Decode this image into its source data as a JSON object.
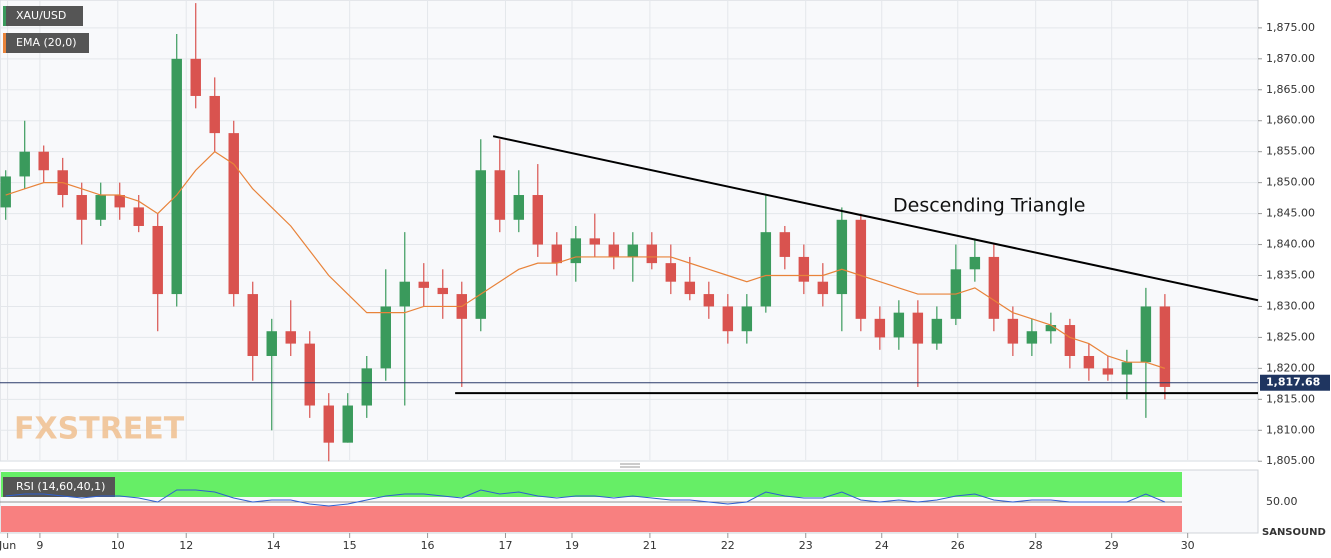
{
  "chart_data": {
    "type": "candlestick",
    "symbol": "XAU/USD",
    "annotation": "Descending Triangle",
    "watermark": "FXSTREET",
    "logo_text": "SANSOUND",
    "up_color": "#3a9a5c",
    "down_color": "#d9534f",
    "x": [
      0,
      1,
      2,
      3,
      4,
      5,
      6,
      7,
      8,
      9,
      10,
      11,
      12,
      13,
      14,
      15,
      16,
      17,
      18,
      19,
      20,
      21,
      22,
      23,
      24,
      25,
      26,
      27,
      28,
      29,
      30,
      31,
      32,
      33,
      34,
      35,
      36,
      37,
      38,
      39,
      40,
      41,
      42,
      43,
      44,
      45,
      46,
      47,
      48,
      49,
      50,
      51,
      52,
      53,
      54,
      55,
      56,
      57,
      58,
      59,
      60,
      61
    ],
    "open": [
      1846,
      1851,
      1855,
      1852,
      1848,
      1844,
      1848,
      1846,
      1843,
      1832,
      1870,
      1864,
      1858,
      1832,
      1822,
      1826,
      1824,
      1814,
      1808,
      1814,
      1820,
      1830,
      1834,
      1833,
      1832,
      1828,
      1852,
      1844,
      1848,
      1840,
      1837,
      1841,
      1840,
      1838,
      1840,
      1837,
      1834,
      1832,
      1830,
      1826,
      1830,
      1842,
      1838,
      1834,
      1832,
      1844,
      1828,
      1825,
      1829,
      1824,
      1828,
      1836,
      1838,
      1828,
      1824,
      1826,
      1827,
      1822,
      1820,
      1819,
      1821,
      1830
    ],
    "high": [
      1852,
      1860,
      1856,
      1854,
      1850,
      1850,
      1850,
      1848,
      1845,
      1874,
      1879,
      1867,
      1860,
      1834,
      1828,
      1831,
      1826,
      1816,
      1816,
      1822,
      1836,
      1842,
      1837,
      1836,
      1834,
      1857,
      1857,
      1852,
      1853,
      1842,
      1843,
      1845,
      1842,
      1842,
      1842,
      1840,
      1838,
      1834,
      1832,
      1832,
      1848,
      1843,
      1840,
      1837,
      1846,
      1845,
      1830,
      1831,
      1831,
      1830,
      1840,
      1841,
      1840,
      1830,
      1828,
      1829,
      1828,
      1824,
      1822,
      1823,
      1833,
      1832
    ],
    "low": [
      1844,
      1849,
      1850,
      1846,
      1840,
      1843,
      1844,
      1842,
      1826,
      1830,
      1862,
      1855,
      1830,
      1818,
      1810,
      1822,
      1812,
      1805,
      1808,
      1812,
      1818,
      1814,
      1830,
      1828,
      1817,
      1826,
      1842,
      1842,
      1838,
      1835,
      1834,
      1838,
      1836,
      1834,
      1836,
      1832,
      1831,
      1828,
      1824,
      1824,
      1829,
      1836,
      1832,
      1830,
      1826,
      1826,
      1823,
      1823,
      1817,
      1823,
      1827,
      1834,
      1826,
      1822,
      1822,
      1824,
      1820,
      1818,
      1818,
      1815,
      1812,
      1815
    ],
    "close": [
      1851,
      1855,
      1852,
      1848,
      1844,
      1848,
      1846,
      1843,
      1832,
      1870,
      1864,
      1858,
      1832,
      1822,
      1826,
      1824,
      1814,
      1808,
      1814,
      1820,
      1830,
      1834,
      1833,
      1832,
      1828,
      1852,
      1844,
      1848,
      1840,
      1837,
      1841,
      1840,
      1838,
      1840,
      1837,
      1834,
      1832,
      1830,
      1826,
      1830,
      1842,
      1838,
      1834,
      1832,
      1844,
      1828,
      1825,
      1829,
      1824,
      1828,
      1836,
      1838,
      1828,
      1824,
      1826,
      1827,
      1822,
      1820,
      1819,
      1821,
      1830,
      1817
    ],
    "series": [
      {
        "name": "EMA (20,0)",
        "color": "#e8833a",
        "values": [
          1848,
          1849,
          1850,
          1850,
          1849,
          1848,
          1848,
          1847,
          1845,
          1848,
          1852,
          1855,
          1853,
          1849,
          1846,
          1843,
          1839,
          1835,
          1832,
          1829,
          1829,
          1829,
          1830,
          1830,
          1830,
          1832,
          1834,
          1836,
          1837,
          1837,
          1838,
          1838,
          1838,
          1838,
          1838,
          1838,
          1837,
          1836,
          1835,
          1834,
          1835,
          1835,
          1835,
          1835,
          1836,
          1835,
          1834,
          1833,
          1832,
          1832,
          1832,
          1833,
          1831,
          1829,
          1828,
          1827,
          1825,
          1824,
          1822,
          1821,
          1821,
          1820
        ]
      }
    ],
    "trendlines": [
      {
        "x": [
          25.65,
          65.9
        ],
        "y": [
          1857.5,
          1831
        ],
        "color": "#000000"
      },
      {
        "x": [
          23.65,
          65.9
        ],
        "y": [
          1816,
          1816
        ],
        "color": "#000000"
      }
    ],
    "last_price": 1817.68,
    "last_price_label": "1,817.68",
    "xlim": [
      -0.3,
      65.9
    ],
    "xticks": [
      {
        "value": 0.1,
        "label": "Jun"
      },
      {
        "value": 1.8,
        "label": "9"
      },
      {
        "value": 5.9,
        "label": "10"
      },
      {
        "value": 9.5,
        "label": "12"
      },
      {
        "value": 14.1,
        "label": "14"
      },
      {
        "value": 18.1,
        "label": "15"
      },
      {
        "value": 22.2,
        "label": "16"
      },
      {
        "value": 26.3,
        "label": "17"
      },
      {
        "value": 29.8,
        "label": "19"
      },
      {
        "value": 33.9,
        "label": "21"
      },
      {
        "value": 38.0,
        "label": "22"
      },
      {
        "value": 42.1,
        "label": "23"
      },
      {
        "value": 46.1,
        "label": "24"
      },
      {
        "value": 50.1,
        "label": "26"
      },
      {
        "value": 54.2,
        "label": "28"
      },
      {
        "value": 58.2,
        "label": "29"
      },
      {
        "value": 62.2,
        "label": "30"
      }
    ],
    "ylim": [
      1805.2,
      1879.5
    ],
    "yticks": [
      {
        "value": 1805,
        "label": "1,805.00"
      },
      {
        "value": 1810,
        "label": "1,810.00"
      },
      {
        "value": 1815,
        "label": "1,815.00"
      },
      {
        "value": 1820,
        "label": "1,820.00"
      },
      {
        "value": 1825,
        "label": "1,825.00"
      },
      {
        "value": 1830,
        "label": "1,830.00"
      },
      {
        "value": 1835,
        "label": "1,835.00"
      },
      {
        "value": 1840,
        "label": "1,840.00"
      },
      {
        "value": 1845,
        "label": "1,845.00"
      },
      {
        "value": 1850,
        "label": "1,850.00"
      },
      {
        "value": 1855,
        "label": "1,855.00"
      },
      {
        "value": 1860,
        "label": "1,860.00"
      },
      {
        "value": 1865,
        "label": "1,865.00"
      },
      {
        "value": 1870,
        "label": "1,870.00"
      },
      {
        "value": 1875,
        "label": "1,875.00"
      }
    ],
    "grid": true,
    "rsi": {
      "name": "RSI (14,60,40,1)",
      "color": "#2f5fd0",
      "values": [
        53,
        54,
        54,
        53,
        52,
        53,
        53,
        52,
        50,
        56,
        56,
        55,
        52,
        50,
        51,
        51,
        49,
        48,
        49,
        51,
        53,
        54,
        54,
        53,
        52,
        56,
        54,
        55,
        53,
        52,
        53,
        53,
        52,
        53,
        52,
        51,
        51,
        50,
        49,
        50,
        55,
        53,
        52,
        52,
        55,
        51,
        50,
        51,
        50,
        51,
        53,
        54,
        51,
        50,
        51,
        51,
        50,
        50,
        50,
        50,
        54,
        50
      ],
      "ylim": [
        35,
        65
      ],
      "yticks": [
        {
          "value": 50,
          "label": "50.00"
        }
      ]
    }
  }
}
